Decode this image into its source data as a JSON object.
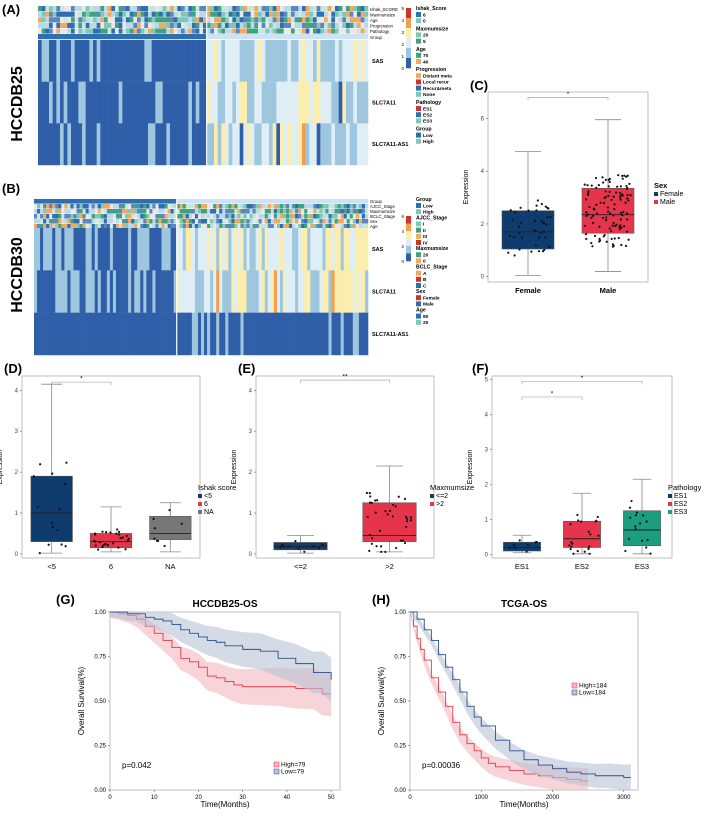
{
  "panels": {
    "A": "(A)",
    "B": "(B)",
    "C": "(C)",
    "D": "(D)",
    "E": "(E)",
    "F": "(F)",
    "G": "(G)",
    "H": "(H)"
  },
  "colors": {
    "low_blue": "#2f5fa8",
    "mid_blue": "#9ec6df",
    "pale": "#dfeef5",
    "yellow": "#fbedab",
    "orange": "#f29e4c",
    "red": "#d7302b",
    "female_navy": "#0f3c6e",
    "male_red": "#e6344b",
    "na_gray": "#777777",
    "es3_green": "#1a9e7f",
    "km_red": "#e03c4c",
    "km_blue": "#2b4f8c"
  },
  "heatmap_a": {
    "cohort": "HCCDB25",
    "annotation_rows": [
      "Ishak_SCORE",
      "Maxmumsize",
      "Age",
      "Progression",
      "Pathology",
      "Group"
    ],
    "genes": [
      "SAS",
      "SLC7A11",
      "SLC7A11-AS1"
    ],
    "colorbar_ticks": [
      "5",
      "4",
      "3",
      "2",
      "1",
      "0"
    ],
    "legend": [
      {
        "title": "Ishak_Score",
        "items": [
          "6",
          "0"
        ]
      },
      {
        "title": "Maxmumsize",
        "items": [
          "20",
          "5"
        ]
      },
      {
        "title": "Age",
        "items": [
          "70",
          "40"
        ]
      },
      {
        "title": "Progression",
        "items": [
          "Distant meta",
          "Local recur",
          "Recur&meta",
          "None"
        ]
      },
      {
        "title": "Pathology",
        "items": [
          "ES1",
          "ES2",
          "ES3"
        ]
      },
      {
        "title": "Group",
        "items": [
          "Low",
          "High"
        ]
      }
    ]
  },
  "heatmap_b": {
    "cohort": "HCCDB30",
    "annotation_rows": [
      "Group",
      "AJCC_Stage",
      "Maxmumsize",
      "BCLC_Stage",
      "Sex",
      "Age"
    ],
    "genes": [
      "SAS",
      "SLC7A11",
      "SLC7A11-AS1"
    ],
    "colorbar_ticks": [
      "6",
      "4",
      "2",
      "0"
    ],
    "legend": [
      {
        "title": "Group",
        "items": [
          "Low",
          "High"
        ]
      },
      {
        "title": "AJCC_Stage",
        "items": [
          "I",
          "II",
          "III",
          "IV"
        ]
      },
      {
        "title": "Maxmumsize",
        "items": [
          "20",
          "0"
        ]
      },
      {
        "title": "BCLC_Stage",
        "items": [
          "A",
          "B",
          "C"
        ]
      },
      {
        "title": "Sex",
        "items": [
          "Female",
          "Male"
        ]
      },
      {
        "title": "Age",
        "items": [
          "80",
          "20"
        ]
      }
    ]
  },
  "chart_data": [
    {
      "type": "box",
      "panel": "C",
      "ylabel": "Expression",
      "categories": [
        "Female",
        "Male"
      ],
      "yticks": [
        0,
        2,
        4,
        6
      ],
      "ylim": [
        -0.2,
        7
      ],
      "boxes": [
        {
          "name": "Female",
          "min": 0.05,
          "q1": 1.05,
          "median": 1.7,
          "q3": 2.5,
          "max": 4.75
        },
        {
          "name": "Male",
          "min": 0.2,
          "q1": 1.65,
          "median": 2.35,
          "q3": 3.35,
          "max": 5.95
        }
      ],
      "significance": [
        "*"
      ],
      "legend_title": "Sex",
      "legend_items": [
        "Female",
        "Male"
      ]
    },
    {
      "type": "box",
      "panel": "D",
      "ylabel": "Expression",
      "categories": [
        "<5",
        "6",
        "NA"
      ],
      "yticks": [
        0,
        1,
        2,
        3,
        4
      ],
      "ylim": [
        -0.1,
        4.35
      ],
      "boxes": [
        {
          "name": "<5",
          "min": 0.02,
          "q1": 0.3,
          "median": 1.0,
          "q3": 1.9,
          "max": 4.15
        },
        {
          "name": "6",
          "min": 0.05,
          "q1": 0.15,
          "median": 0.3,
          "q3": 0.5,
          "max": 1.15
        },
        {
          "name": "NA",
          "min": 0.05,
          "q1": 0.35,
          "median": 0.5,
          "q3": 0.92,
          "max": 1.25
        }
      ],
      "significance": [
        "*"
      ],
      "legend_title": "Ishak score",
      "legend_items": [
        "<5",
        "6",
        "NA"
      ]
    },
    {
      "type": "box",
      "panel": "E",
      "ylabel": "Expression",
      "categories": [
        "<=2",
        ">2"
      ],
      "yticks": [
        0,
        1,
        2,
        3,
        4
      ],
      "ylim": [
        -0.1,
        4.35
      ],
      "boxes": [
        {
          "name": "<=2",
          "min": 0.02,
          "q1": 0.1,
          "median": 0.18,
          "q3": 0.28,
          "max": 0.45
        },
        {
          "name": ">2",
          "min": 0.05,
          "q1": 0.3,
          "median": 0.45,
          "q3": 1.25,
          "max": 2.15
        }
      ],
      "significance": [
        "**"
      ],
      "legend_title": "Maxmumsize",
      "legend_items": [
        "<=2",
        ">2"
      ]
    },
    {
      "type": "box",
      "panel": "F",
      "ylabel": "Expression",
      "categories": [
        "ES1",
        "ES2",
        "ES3"
      ],
      "yticks": [
        0,
        1,
        2,
        3,
        4,
        5
      ],
      "ylim": [
        -0.1,
        5.1
      ],
      "boxes": [
        {
          "name": "ES1",
          "min": 0.05,
          "q1": 0.1,
          "median": 0.2,
          "q3": 0.35,
          "max": 0.55
        },
        {
          "name": "ES2",
          "min": 0.02,
          "q1": 0.2,
          "median": 0.45,
          "q3": 0.95,
          "max": 1.75
        },
        {
          "name": "ES3",
          "min": 0.02,
          "q1": 0.25,
          "median": 0.7,
          "q3": 1.25,
          "max": 2.15
        }
      ],
      "significance": [
        "*",
        "*"
      ],
      "legend_title": "Pathology",
      "legend_items": [
        "ES1",
        "ES2",
        "ES3"
      ]
    },
    {
      "type": "line",
      "panel": "G",
      "title": "HCCDB25-OS",
      "xlabel": "Time(Months)",
      "ylabel": "Overall Survival(%)",
      "xticks": [
        0,
        10,
        20,
        30,
        40,
        50
      ],
      "yticks": [
        "0.00",
        "0.25",
        "0.50",
        "0.75",
        "1.00"
      ],
      "xlim": [
        0,
        52
      ],
      "ylim": [
        0,
        1
      ],
      "pvalue": "p=0.042",
      "series": [
        {
          "name": "High=79",
          "x": [
            0,
            2,
            4,
            6,
            8,
            10,
            12,
            14,
            16,
            18,
            20,
            22,
            24,
            26,
            28,
            30,
            34,
            38,
            42,
            46,
            48,
            50
          ],
          "y": [
            1.0,
            0.99,
            0.98,
            0.96,
            0.92,
            0.88,
            0.84,
            0.8,
            0.74,
            0.72,
            0.69,
            0.64,
            0.63,
            0.61,
            0.59,
            0.58,
            0.58,
            0.58,
            0.57,
            0.57,
            0.54,
            0.54
          ]
        },
        {
          "name": "Low=79",
          "x": [
            0,
            2,
            4,
            6,
            8,
            10,
            12,
            14,
            16,
            18,
            20,
            22,
            24,
            26,
            30,
            34,
            38,
            42,
            46,
            48,
            50
          ],
          "y": [
            1.0,
            1.0,
            0.99,
            0.99,
            0.97,
            0.96,
            0.95,
            0.93,
            0.9,
            0.88,
            0.86,
            0.84,
            0.83,
            0.81,
            0.79,
            0.78,
            0.74,
            0.71,
            0.66,
            0.66,
            0.62
          ]
        }
      ]
    },
    {
      "type": "line",
      "panel": "H",
      "title": "TCGA-OS",
      "xlabel": "Time(Months)",
      "ylabel": "Overall Survival(%)",
      "xticks": [
        0,
        1000,
        2000,
        3000
      ],
      "yticks": [
        "0.00",
        "0.25",
        "0.50",
        "0.75",
        "1.00"
      ],
      "xlim": [
        0,
        3200
      ],
      "ylim": [
        0,
        1
      ],
      "pvalue": "p=0.00036",
      "series": [
        {
          "name": "High=184",
          "x": [
            0,
            50,
            100,
            150,
            200,
            300,
            400,
            500,
            600,
            700,
            800,
            900,
            1000,
            1100,
            1200,
            1400,
            1600,
            1800,
            2000,
            2200,
            2400,
            2500
          ],
          "y": [
            1.0,
            0.92,
            0.85,
            0.79,
            0.73,
            0.63,
            0.55,
            0.47,
            0.38,
            0.31,
            0.26,
            0.22,
            0.18,
            0.15,
            0.13,
            0.11,
            0.09,
            0.08,
            0.07,
            0.06,
            0.05,
            0.05
          ]
        },
        {
          "name": "Low=184",
          "x": [
            0,
            100,
            200,
            300,
            400,
            500,
            600,
            700,
            800,
            900,
            1000,
            1200,
            1400,
            1600,
            1800,
            2000,
            2200,
            2400,
            2600,
            2800,
            3000,
            3100
          ],
          "y": [
            1.0,
            0.96,
            0.9,
            0.84,
            0.76,
            0.69,
            0.62,
            0.55,
            0.47,
            0.41,
            0.36,
            0.28,
            0.22,
            0.17,
            0.14,
            0.12,
            0.1,
            0.09,
            0.08,
            0.08,
            0.07,
            0.07
          ]
        }
      ]
    }
  ]
}
